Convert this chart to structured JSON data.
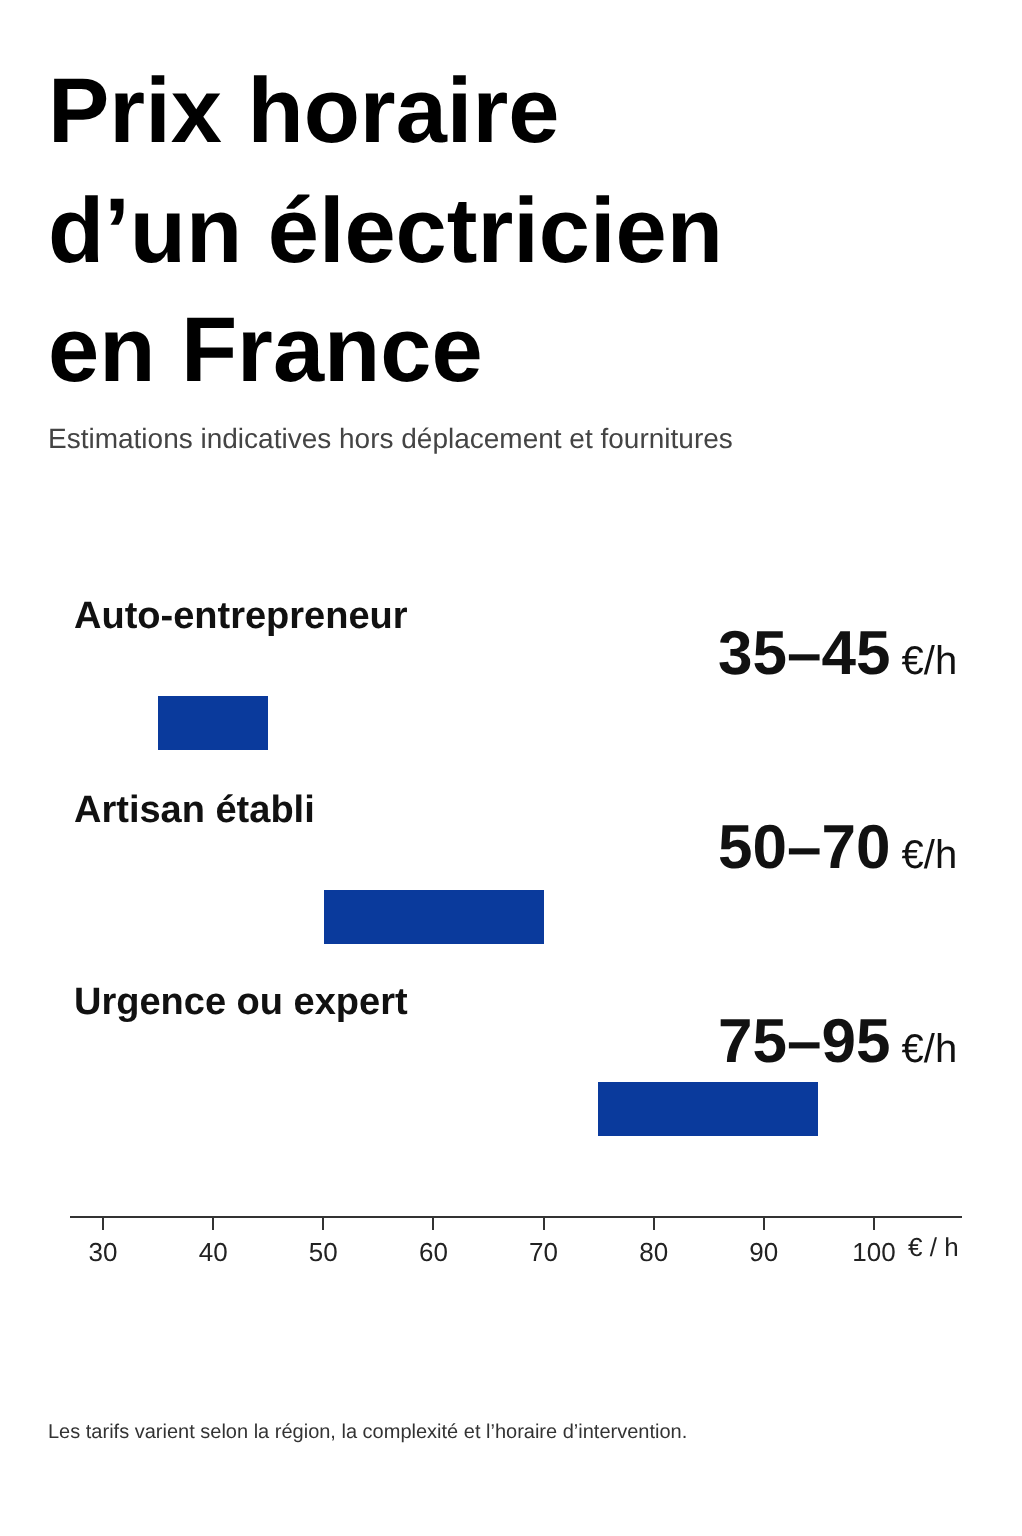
{
  "chart_data": {
    "type": "bar",
    "orientation": "horizontal",
    "title": "Prix horaire d’un électricien en France",
    "subtitle": "Estimations indicatives hors déplacement et fournitures",
    "xlabel": "€ / h",
    "categories": [
      "Auto-entrepreneur",
      "Artisan établi",
      "Urgence ou expert"
    ],
    "base": [
      35,
      50,
      75
    ],
    "values": [
      10,
      20,
      20
    ],
    "value_labels": [
      "35–45 €/h",
      "50–70 €/h",
      "75–95 €/h"
    ],
    "color": "#0a3a9c",
    "xlim": [
      27,
      108
    ],
    "xticks": [
      30,
      40,
      50,
      60,
      70,
      80,
      90,
      100
    ],
    "annotations": [
      "Les tarifs varient selon la région, la complexité et l’horaire d’intervention."
    ]
  }
}
